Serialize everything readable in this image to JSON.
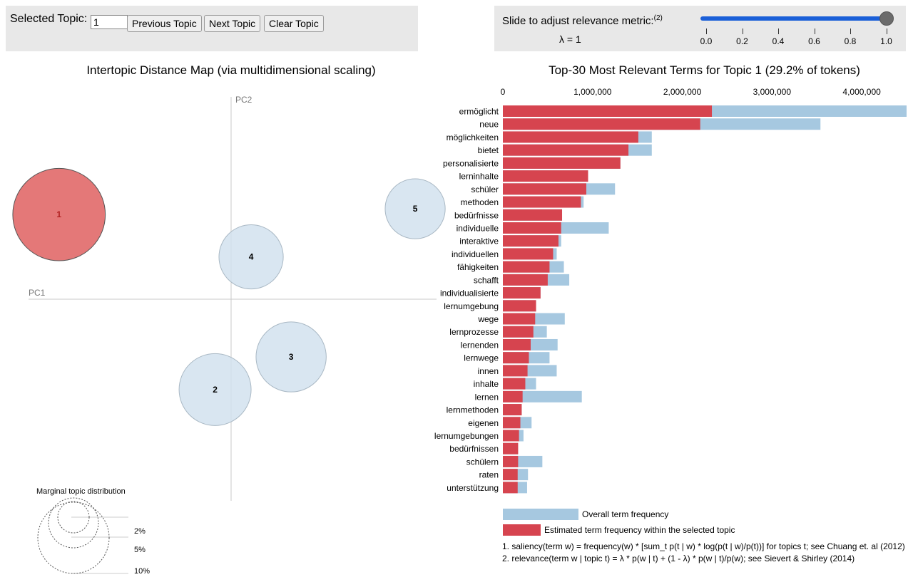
{
  "controls": {
    "selected_topic_label": "Selected Topic:",
    "selected_topic_value": "1",
    "prev_label": "Previous Topic",
    "next_label": "Next Topic",
    "clear_label": "Clear Topic"
  },
  "lambda": {
    "label": "Slide to adjust relevance metric:",
    "label_sup": "(2)",
    "value_text": "λ = 1",
    "value": 1.0,
    "ticks": [
      "0.0",
      "0.2",
      "0.4",
      "0.6",
      "0.8",
      "1.0"
    ]
  },
  "colors": {
    "overall": "#a6c8e0",
    "topic": "#d6444f",
    "selected_circle": "#e47878",
    "circle": "#d2e2ee",
    "slider": "#1a5fd8"
  },
  "intertopic": {
    "title": "Intertopic Distance Map (via multidimensional scaling)",
    "pc1": "PC1",
    "pc2": "PC2",
    "selected": "1",
    "topics": [
      {
        "id": "1",
        "pc1": -0.43,
        "pc2": 0.44,
        "share": 29.2
      },
      {
        "id": "2",
        "pc1": -0.04,
        "pc2": -0.47,
        "share": 17.7
      },
      {
        "id": "3",
        "pc1": 0.15,
        "pc2": -0.3,
        "share": 16.8
      },
      {
        "id": "4",
        "pc1": 0.05,
        "pc2": 0.22,
        "share": 14.1
      },
      {
        "id": "5",
        "pc1": 0.46,
        "pc2": 0.47,
        "share": 12.3
      }
    ],
    "marginal": {
      "title": "Marginal topic distribution",
      "labels": [
        "2%",
        "5%",
        "10%"
      ]
    }
  },
  "chart_data": {
    "type": "bar",
    "title": "Top-30 Most Relevant Terms for Topic 1 (29.2% of tokens)",
    "orientation": "horizontal",
    "xlim": [
      0,
      4500000
    ],
    "x_ticks": [
      "0",
      "1,000,000",
      "2,000,000",
      "3,000,000",
      "4,000,000"
    ],
    "x_tick_values": [
      0,
      1000000,
      2000000,
      3000000,
      4000000
    ],
    "categories": [
      "ermöglicht",
      "neue",
      "möglichkeiten",
      "bietet",
      "personalisierte",
      "lerninhalte",
      "schüler",
      "methoden",
      "bedürfnisse",
      "individuelle",
      "interaktive",
      "individuellen",
      "fähigkeiten",
      "schafft",
      "individualisierte",
      "lernumgebung",
      "wege",
      "lernprozesse",
      "lernenden",
      "lernwege",
      "innen",
      "inhalte",
      "lernen",
      "lernmethoden",
      "eigenen",
      "lernumgebungen",
      "bedürfnissen",
      "schülern",
      "raten",
      "unterstützung"
    ],
    "series": [
      {
        "name": "Overall term frequency",
        "values": [
          4500000,
          3540000,
          1660000,
          1660000,
          1310000,
          950000,
          1250000,
          900000,
          660000,
          1180000,
          650000,
          600000,
          680000,
          740000,
          420000,
          370000,
          690000,
          490000,
          610000,
          520000,
          600000,
          370000,
          880000,
          210000,
          320000,
          230000,
          170000,
          440000,
          280000,
          270000
        ]
      },
      {
        "name": "Estimated term frequency within the selected topic",
        "values": [
          2330000,
          2200000,
          1510000,
          1400000,
          1310000,
          950000,
          930000,
          870000,
          660000,
          650000,
          620000,
          560000,
          520000,
          500000,
          420000,
          370000,
          360000,
          340000,
          310000,
          290000,
          275000,
          250000,
          220000,
          210000,
          195000,
          180000,
          170000,
          170000,
          165000,
          165000
        ]
      }
    ],
    "legend": [
      "Overall term frequency",
      "Estimated term frequency within the selected topic"
    ],
    "footnotes": [
      "1. saliency(term w) = frequency(w) * [sum_t p(t | w) * log(p(t | w)/p(t))] for topics t; see Chuang et. al (2012)",
      "2. relevance(term w | topic t) = λ * p(w | t) + (1 - λ) * p(w | t)/p(w); see Sievert & Shirley (2014)"
    ]
  }
}
